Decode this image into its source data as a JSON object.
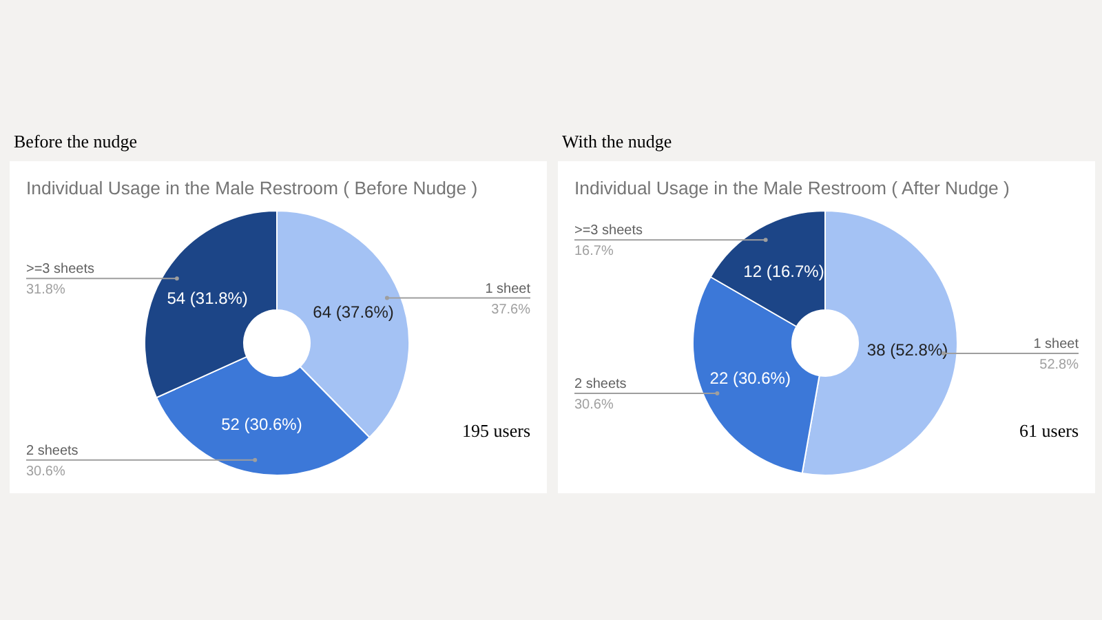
{
  "chart_data": [
    {
      "type": "donut",
      "title": "Before the nudge",
      "subtitle": "Individual Usage in the Male Restroom ( Before Nudge )",
      "categories": [
        "1 sheet",
        "2 sheets",
        ">=3 sheets"
      ],
      "values": [
        64,
        52,
        54
      ],
      "colors": [
        "#a4c2f4",
        "#3c78d8",
        "#1c4587"
      ],
      "value_labels": [
        "64 (37.6%)",
        "52 (30.6%)",
        "54 (31.8%)"
      ],
      "annotations": [
        {
          "text": "37.6%",
          "x": "1 sheet"
        },
        {
          "text": "30.6%",
          "x": "2 sheets"
        },
        {
          "text": "31.8%",
          "x": ">=3 sheets"
        },
        "195 users"
      ]
    },
    {
      "type": "donut",
      "title": "With the nudge",
      "subtitle": "Individual Usage in the Male Restroom ( After Nudge )",
      "categories": [
        "1 sheet",
        "2 sheets",
        ">=3 sheets"
      ],
      "values": [
        38,
        22,
        12
      ],
      "colors": [
        "#a4c2f4",
        "#3c78d8",
        "#1c4587"
      ],
      "value_labels": [
        "38 (52.8%)",
        "22 (30.6%)",
        "12 (16.7%)"
      ],
      "annotations": [
        {
          "text": "52.8%",
          "x": "1 sheet"
        },
        {
          "text": "30.6%",
          "x": "2 sheets"
        },
        {
          "text": "16.7%",
          "x": ">=3 sheets"
        },
        "61 users"
      ]
    }
  ]
}
